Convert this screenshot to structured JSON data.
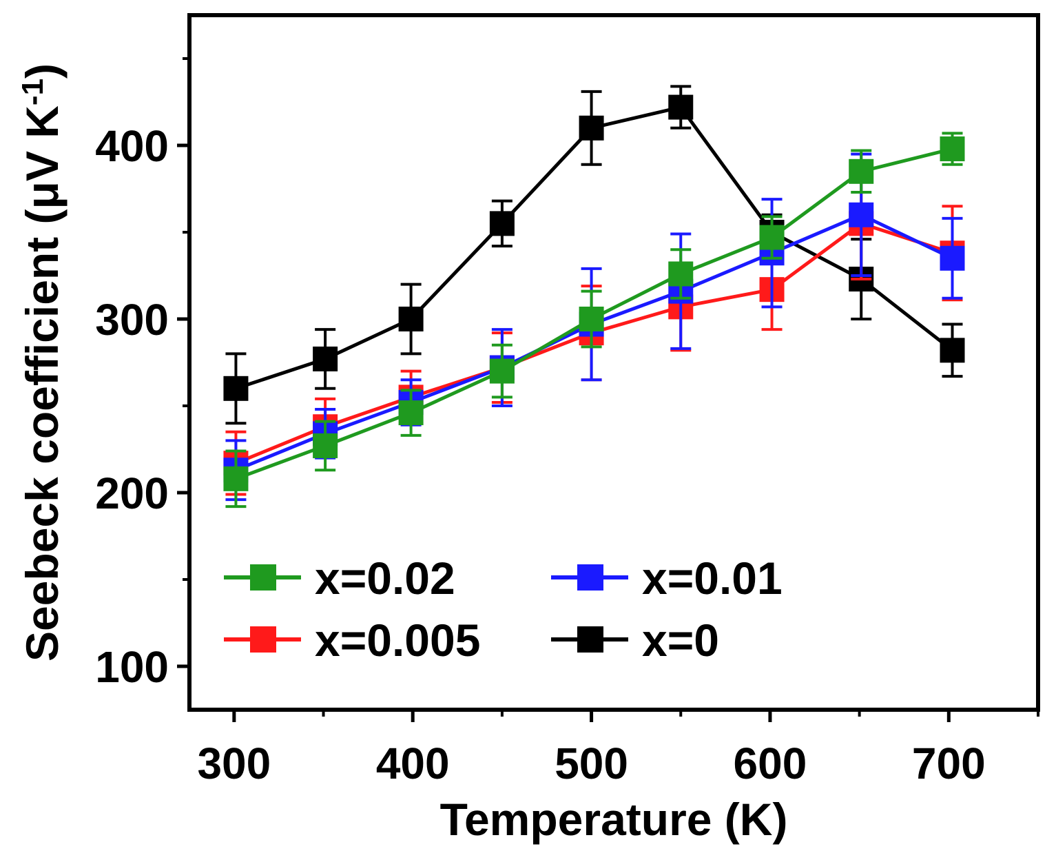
{
  "chart_data": {
    "type": "line",
    "title": "",
    "xlabel": "Temperature (K)",
    "ylabel": "Seebeck coefficient (μV K",
    "ylabel_sup": "-1",
    "ylabel_close": ")",
    "xlim": [
      275,
      750
    ],
    "ylim": [
      75,
      475
    ],
    "xticks": [
      300,
      400,
      500,
      600,
      700
    ],
    "xtick_labels": [
      "300",
      "400",
      "500",
      "600",
      "700"
    ],
    "xminor": [
      350,
      450,
      550,
      650,
      750
    ],
    "yticks": [
      100,
      200,
      300,
      400
    ],
    "ytick_labels": [
      "100",
      "200",
      "300",
      "400"
    ],
    "yminor": [
      150,
      250,
      350,
      450
    ],
    "grid": false,
    "legend_position": "bottom-left",
    "series": [
      {
        "name": "x=0",
        "color": "#000000",
        "x": [
          301,
          351,
          399,
          450,
          500,
          550,
          601,
          651,
          702
        ],
        "y": [
          260,
          277,
          300,
          355,
          410,
          422,
          350,
          323,
          282
        ],
        "err": [
          20,
          17,
          20,
          13,
          21,
          12,
          10,
          23,
          15
        ]
      },
      {
        "name": "x=0.005",
        "color": "#ff1a1a",
        "x": [
          301,
          351,
          399,
          450,
          500,
          550,
          601,
          651,
          702
        ],
        "y": [
          217,
          238,
          255,
          272,
          292,
          307,
          317,
          355,
          338
        ],
        "err": [
          18,
          16,
          15,
          20,
          27,
          25,
          23,
          32,
          27
        ]
      },
      {
        "name": "x=0.01",
        "color": "#1a1aff",
        "x": [
          301,
          351,
          399,
          450,
          500,
          550,
          601,
          651,
          702
        ],
        "y": [
          213,
          234,
          252,
          272,
          297,
          316,
          338,
          360,
          335
        ],
        "err": [
          17,
          14,
          13,
          22,
          32,
          33,
          31,
          35,
          23
        ]
      },
      {
        "name": "x=0.02",
        "color": "#1f9a1f",
        "x": [
          301,
          351,
          399,
          450,
          500,
          550,
          601,
          651,
          702
        ],
        "y": [
          208,
          227,
          246,
          270,
          300,
          326,
          347,
          385,
          398
        ],
        "err": [
          16,
          14,
          13,
          15,
          16,
          14,
          12,
          12,
          9
        ]
      }
    ],
    "legend_order": [
      "x=0.02",
      "x=0.01",
      "x=0.005",
      "x=0"
    ]
  }
}
